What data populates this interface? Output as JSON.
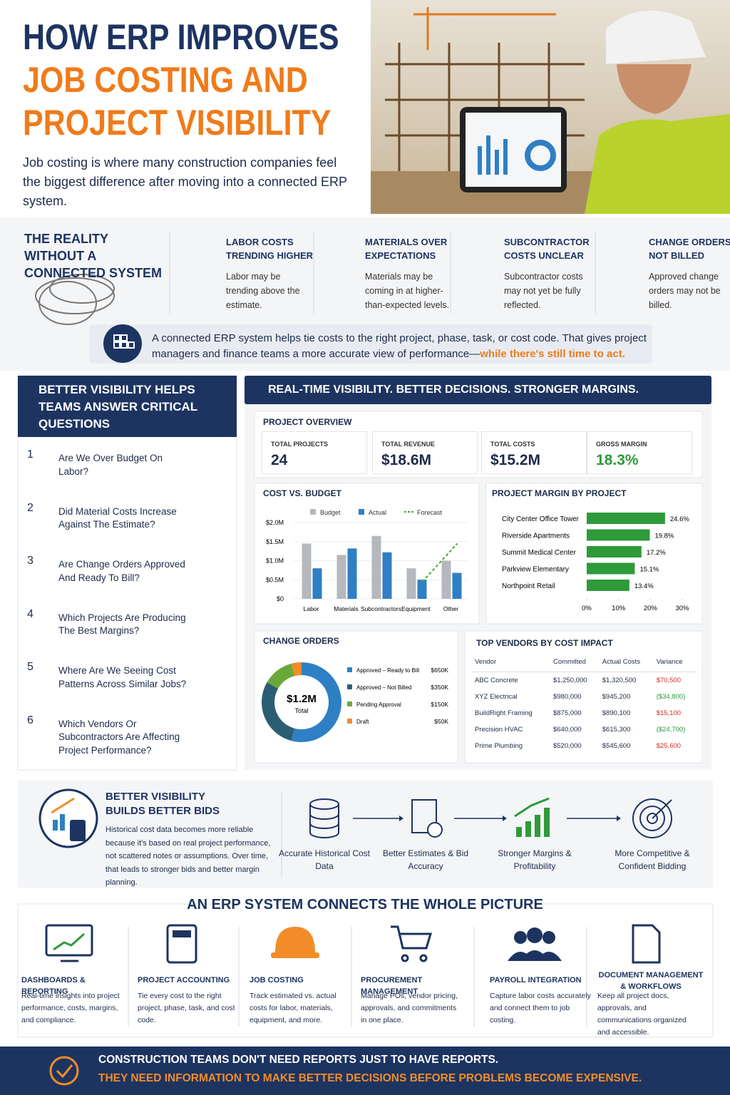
{
  "header": {
    "title_lines": [
      "HOW ERP IMPROVES",
      "JOB COSTING AND",
      "PROJECT VISIBILITY"
    ],
    "intro": "Job costing is where many construction companies feel the biggest difference after moving into a connected ERP system."
  },
  "reality": {
    "heading": "THE REALITY WITHOUT A CONNECTED SYSTEM",
    "items": [
      {
        "title": "LABOR COSTS TRENDING HIGHER",
        "text": "Labor may be trending above the estimate."
      },
      {
        "title": "MATERIALS OVER EXPECTATIONS",
        "text": "Materials may be coming in at higher-than-expected levels."
      },
      {
        "title": "SUBCONTRACTOR COSTS UNCLEAR",
        "text": "Subcontractor costs may not yet be fully reflected."
      },
      {
        "title": "CHANGE ORDERS NOT BILLED",
        "text": "Approved change orders may not be billed."
      }
    ]
  },
  "callout": {
    "text": "A connected ERP system helps tie costs to the right project, phase, task, or cost code. That gives project managers and finance teams a more accurate view of performance—",
    "highlight": "while there's still time to act."
  },
  "questions": {
    "heading": "BETTER VISIBILITY HELPS TEAMS ANSWER CRITICAL QUESTIONS",
    "items": [
      {
        "number": 1,
        "text": "Are We Over Budget On Labor?"
      },
      {
        "number": 2,
        "text": "Did Material Costs Increase Against The Estimate?"
      },
      {
        "number": 3,
        "text": "Are Change Orders Approved And Ready To Bill?"
      },
      {
        "number": 4,
        "text": "Which Projects Are Producing The Best Margins?"
      },
      {
        "number": 5,
        "text": "Where Are We Seeing Cost Patterns Across Similar Jobs?"
      },
      {
        "number": 6,
        "text": "Which Vendors Or Subcontractors Are Affecting Project Performance?"
      }
    ]
  },
  "dashboard": {
    "banner": "REAL-TIME VISIBILITY. BETTER DECISIONS. STRONGER MARGINS.",
    "overview": {
      "heading": "PROJECT OVERVIEW",
      "kpis": [
        {
          "label": "TOTAL PROJECTS",
          "value": 24
        },
        {
          "label": "TOTAL REVENUE",
          "value": "$18.6M"
        },
        {
          "label": "TOTAL COSTS",
          "value": "$15.2M"
        },
        {
          "label": "GROSS MARGIN",
          "value": "18.3%"
        }
      ]
    },
    "vendors": {
      "heading": "TOP VENDORS BY COST IMPACT",
      "columns": [
        "Vendor",
        "Committed",
        "Actual Costs",
        "Variance"
      ],
      "rows": [
        {
          "vendor": "ABC Concrete",
          "committed": "$1,250,000",
          "actual": "$1,320,500",
          "variance": "$70,500",
          "variance_color": "#d62d20"
        },
        {
          "vendor": "XYZ Electrical",
          "committed": "$980,000",
          "actual": "$945,200",
          "variance": "($34,800)",
          "variance_color": "#2e9a3a"
        },
        {
          "vendor": "BuildRight Framing",
          "committed": "$875,000",
          "actual": "$890,100",
          "variance": "$15,100",
          "variance_color": "#d62d20"
        },
        {
          "vendor": "Precision HVAC",
          "committed": "$640,000",
          "actual": "$615,300",
          "variance": "($24,700)",
          "variance_color": "#2e9a3a"
        },
        {
          "vendor": "Prime Plumbing",
          "committed": "$520,000",
          "actual": "$545,600",
          "variance": "$25,600",
          "variance_color": "#d62d20"
        }
      ]
    }
  },
  "chart_data": [
    {
      "type": "bar",
      "title": "COST VS. BUDGET",
      "categories": [
        "Labor",
        "Materials",
        "Subcontractors",
        "Equipment",
        "Other"
      ],
      "series": [
        {
          "name": "Budget",
          "color": "#b5b8bd",
          "values": [
            1450000,
            1150000,
            1650000,
            800000,
            1000000
          ]
        },
        {
          "name": "Actual",
          "color": "#2f7fc4",
          "values": [
            800000,
            1320000,
            1220000,
            500000,
            680000
          ]
        },
        {
          "name": "Forecast",
          "type": "line",
          "color": "#4aa53a",
          "values": [
            null,
            null,
            null,
            450000,
            1450000
          ]
        }
      ],
      "ylim": [
        0,
        2000000
      ],
      "yticks": [
        {
          "value": 0,
          "label": "$0"
        },
        {
          "value": 500000,
          "label": "$0.5M"
        },
        {
          "value": 1000000,
          "label": "$1.0M"
        },
        {
          "value": 1500000,
          "label": "$1.5M"
        },
        {
          "value": 2000000,
          "label": "$2.0M"
        }
      ]
    },
    {
      "type": "hbar",
      "title": "PROJECT MARGIN BY PROJECT",
      "categories": [
        "City Center Office Tower",
        "Riverside Apartments",
        "Summit Medical Center",
        "Parkview Elementary",
        "Northpoint Retail"
      ],
      "values": [
        24.6,
        19.8,
        17.2,
        15.1,
        13.4
      ],
      "value_labels": [
        "24.6%",
        "19.8%",
        "17.2%",
        "15.1%",
        "13.4%"
      ],
      "color": "#2e9a3a",
      "xlim": [
        0,
        30
      ],
      "xticks": [
        {
          "value": 0,
          "label": "0%"
        },
        {
          "value": 10,
          "label": "10%"
        },
        {
          "value": 20,
          "label": "20%"
        },
        {
          "value": 30,
          "label": "30%"
        }
      ]
    },
    {
      "type": "donut",
      "title": "CHANGE ORDERS",
      "center_value": "$1.2M",
      "center_label": "Total",
      "categories": [
        "Approved – Ready to Bill",
        "Approved – Not Billed",
        "Pending Approval",
        "Draft"
      ],
      "values": [
        650000,
        350000,
        150000,
        50000
      ],
      "value_labels": [
        "$650K",
        "$350K",
        "$150K",
        "$50K"
      ],
      "colors": [
        "#2f7fc4",
        "#2b5e73",
        "#6aa83a",
        "#f28c28"
      ]
    }
  ],
  "bids": {
    "heading": "BETTER VISIBILITY BUILDS BETTER BIDS",
    "text": "Historical cost data becomes more reliable because it's based on real project performance, not scattered notes or assumptions. Over time, that leads to stronger bids and better margin planning.",
    "steps": [
      "Accurate Historical Cost Data",
      "Better Estimates & Bid Accuracy",
      "Stronger Margins & Profitability",
      "More Competitive & Confident Bidding"
    ]
  },
  "modules": {
    "heading": "AN ERP SYSTEM CONNECTS THE WHOLE PICTURE",
    "items": [
      {
        "title": "DASHBOARDS & REPORTING",
        "text": "Real-time insights into project performance, costs, margins, and compliance."
      },
      {
        "title": "PROJECT ACCOUNTING",
        "text": "Tie every cost to the right project, phase, task, and cost code."
      },
      {
        "title": "JOB COSTING",
        "text": "Track estimated vs. actual costs for labor, materials, equipment, and more."
      },
      {
        "title": "PROCUREMENT MANAGEMENT",
        "text": "Manage POs, vendor pricing, approvals, and commitments in one place."
      },
      {
        "title": "PAYROLL INTEGRATION",
        "text": "Capture labor costs accurately and connect them to job costing."
      },
      {
        "title": "DOCUMENT MANAGEMENT & WORKFLOWS",
        "text": "Keep all project docs, approvals, and communications organized and accessible."
      }
    ]
  },
  "footer": {
    "line1": "CONSTRUCTION TEAMS DON'T NEED REPORTS JUST TO HAVE REPORTS.",
    "line2": "THEY NEED INFORMATION TO MAKE BETTER DECISIONS BEFORE PROBLEMS BECOME EXPENSIVE."
  }
}
